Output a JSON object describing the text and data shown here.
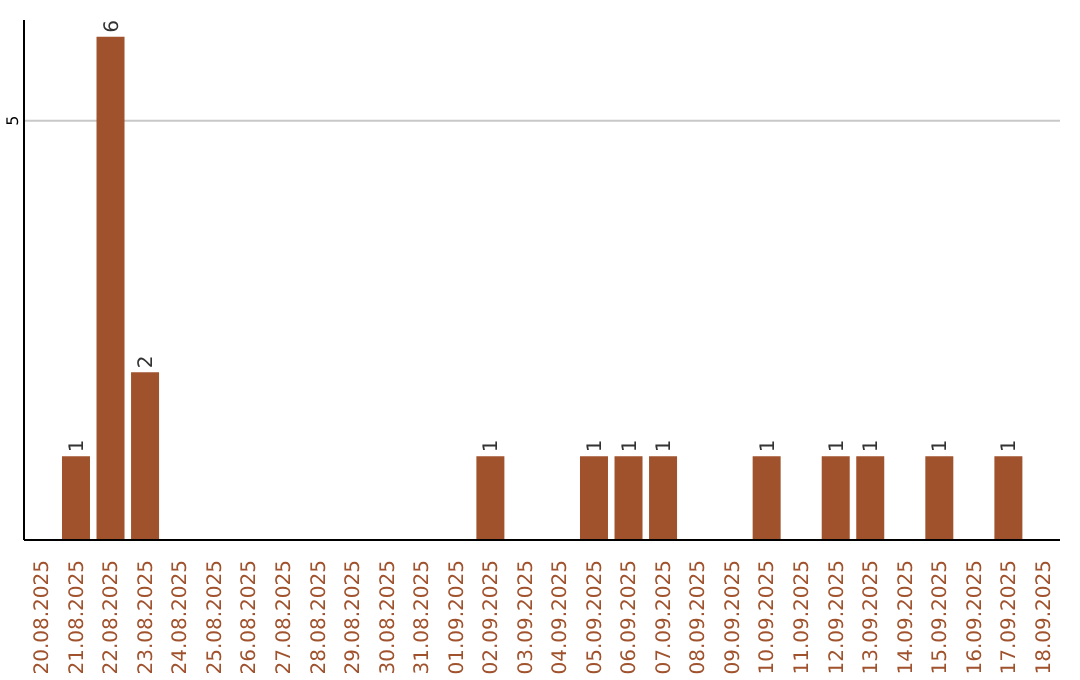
{
  "chart_data": {
    "type": "bar",
    "categories": [
      "20.08.2025",
      "21.08.2025",
      "22.08.2025",
      "23.08.2025",
      "24.08.2025",
      "25.08.2025",
      "26.08.2025",
      "27.08.2025",
      "28.08.2025",
      "29.08.2025",
      "30.08.2025",
      "31.08.2025",
      "01.09.2025",
      "02.09.2025",
      "03.09.2025",
      "04.09.2025",
      "05.09.2025",
      "06.09.2025",
      "07.09.2025",
      "08.09.2025",
      "09.09.2025",
      "10.09.2025",
      "11.09.2025",
      "12.09.2025",
      "13.09.2025",
      "14.09.2025",
      "15.09.2025",
      "16.09.2025",
      "17.09.2025",
      "18.09.2025"
    ],
    "values": [
      0,
      1,
      6,
      2,
      0,
      0,
      0,
      0,
      0,
      0,
      0,
      0,
      0,
      1,
      0,
      0,
      1,
      1,
      1,
      0,
      0,
      1,
      0,
      1,
      1,
      0,
      1,
      0,
      1,
      0
    ],
    "value_labels": [
      null,
      "1",
      "6",
      "2",
      null,
      null,
      null,
      null,
      null,
      null,
      null,
      null,
      null,
      "1",
      null,
      null,
      "1",
      "1",
      "1",
      null,
      null,
      "1",
      null,
      "1",
      "1",
      null,
      "1",
      null,
      "1",
      null
    ],
    "color": "#a0522d",
    "ylim": [
      0,
      6.2
    ],
    "yticks": [
      5
    ],
    "grid": "y"
  }
}
